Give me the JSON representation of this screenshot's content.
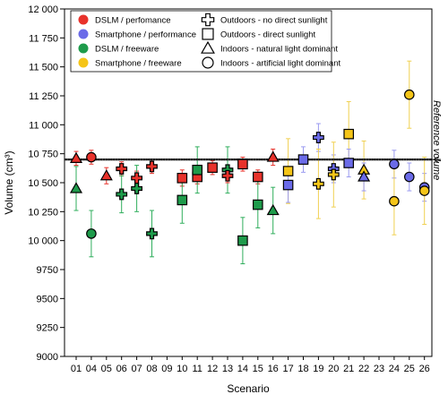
{
  "chart_data": {
    "type": "scatter",
    "xlabel": "Scenario",
    "ylabel": "Volume (cm³)",
    "categories": [
      "01",
      "04",
      "05",
      "06",
      "07",
      "08",
      "09",
      "10",
      "11",
      "12",
      "13",
      "14",
      "15",
      "16",
      "17",
      "18",
      "19",
      "20",
      "21",
      "22",
      "23",
      "24",
      "25",
      "26"
    ],
    "ylim": [
      9000,
      12000
    ],
    "yticks": [
      9000,
      9250,
      9500,
      9750,
      10000,
      10250,
      10500,
      10750,
      11000,
      11250,
      11500,
      11750,
      12000
    ],
    "ytick_labels": [
      "9000",
      "9250",
      "9500",
      "9750",
      "10 000",
      "10 250",
      "10 500",
      "10 750",
      "11 000",
      "11 250",
      "11 500",
      "11 750",
      "12 000"
    ],
    "reference": {
      "value": 10700,
      "label": "Reference volume"
    },
    "colors": {
      "dslm_performance": "#e8322b",
      "smartphone_performance": "#6b6be8",
      "dslm_freeware": "#1e9b4b",
      "smartphone_freeware": "#f5c518"
    },
    "error_colors": {
      "dslm_performance": "#e8322b",
      "smartphone_performance": "#9a9af0",
      "dslm_freeware": "#2fae5c",
      "smartphone_freeware": "#f0d050"
    },
    "legend_colors": [
      {
        "label": "DSLM / perfomance",
        "group": "dslm_performance"
      },
      {
        "label": "Smartphone / performance",
        "group": "smartphone_performance"
      },
      {
        "label": "DSLM / freeware",
        "group": "dslm_freeware"
      },
      {
        "label": "Smartphone / freeware",
        "group": "smartphone_freeware"
      }
    ],
    "legend_shapes": [
      {
        "label": "Outdoors - no direct sunlight",
        "shape": "cross"
      },
      {
        "label": "Outdoors - direct sunlight",
        "shape": "square"
      },
      {
        "label": "Indoors - natural light dominant",
        "shape": "triangle"
      },
      {
        "label": "Indoors - artificial light dominant",
        "shape": "circle"
      }
    ],
    "points": [
      {
        "x": "01",
        "y": 10710,
        "err": 60,
        "group": "dslm_performance",
        "shape": "triangle"
      },
      {
        "x": "01",
        "y": 10450,
        "err": 190,
        "group": "dslm_freeware",
        "shape": "triangle"
      },
      {
        "x": "04",
        "y": 10720,
        "err": 60,
        "group": "dslm_performance",
        "shape": "circle"
      },
      {
        "x": "04",
        "y": 10060,
        "err": 200,
        "group": "dslm_freeware",
        "shape": "circle"
      },
      {
        "x": "05",
        "y": 10560,
        "err": 70,
        "group": "dslm_performance",
        "shape": "triangle"
      },
      {
        "x": "06",
        "y": 10620,
        "err": 60,
        "group": "dslm_performance",
        "shape": "cross"
      },
      {
        "x": "06",
        "y": 10400,
        "err": 160,
        "group": "dslm_freeware",
        "shape": "cross"
      },
      {
        "x": "07",
        "y": 10540,
        "err": 60,
        "group": "dslm_performance",
        "shape": "cross"
      },
      {
        "x": "07",
        "y": 10450,
        "err": 200,
        "group": "dslm_freeware",
        "shape": "cross"
      },
      {
        "x": "08",
        "y": 10640,
        "err": 60,
        "group": "dslm_performance",
        "shape": "cross"
      },
      {
        "x": "08",
        "y": 10060,
        "err": 200,
        "group": "dslm_freeware",
        "shape": "cross"
      },
      {
        "x": "10",
        "y": 10540,
        "err": 70,
        "group": "dslm_performance",
        "shape": "square"
      },
      {
        "x": "10",
        "y": 10350,
        "err": 200,
        "group": "dslm_freeware",
        "shape": "square"
      },
      {
        "x": "11",
        "y": 10550,
        "err": 60,
        "group": "dslm_performance",
        "shape": "square"
      },
      {
        "x": "11",
        "y": 10610,
        "err": 200,
        "group": "dslm_freeware",
        "shape": "square"
      },
      {
        "x": "12",
        "y": 10630,
        "err": 60,
        "group": "dslm_performance",
        "shape": "square"
      },
      {
        "x": "13",
        "y": 10610,
        "err": 200,
        "group": "dslm_freeware",
        "shape": "cross"
      },
      {
        "x": "13",
        "y": 10560,
        "err": 60,
        "group": "dslm_performance",
        "shape": "cross"
      },
      {
        "x": "14",
        "y": 10660,
        "err": 60,
        "group": "dslm_performance",
        "shape": "square"
      },
      {
        "x": "14",
        "y": 10000,
        "err": 200,
        "group": "dslm_freeware",
        "shape": "square"
      },
      {
        "x": "15",
        "y": 10550,
        "err": 60,
        "group": "dslm_performance",
        "shape": "square"
      },
      {
        "x": "15",
        "y": 10310,
        "err": 200,
        "group": "dslm_freeware",
        "shape": "square"
      },
      {
        "x": "16",
        "y": 10720,
        "err": 70,
        "group": "dslm_performance",
        "shape": "triangle"
      },
      {
        "x": "16",
        "y": 10260,
        "err": 200,
        "group": "dslm_freeware",
        "shape": "triangle"
      },
      {
        "x": "17",
        "y": 10600,
        "err": 280,
        "group": "smartphone_freeware",
        "shape": "square"
      },
      {
        "x": "17",
        "y": 10480,
        "err": 150,
        "group": "smartphone_performance",
        "shape": "square"
      },
      {
        "x": "18",
        "y": 10700,
        "err": 110,
        "group": "smartphone_performance",
        "shape": "square"
      },
      {
        "x": "19",
        "y": 10890,
        "err": 120,
        "group": "smartphone_performance",
        "shape": "cross"
      },
      {
        "x": "19",
        "y": 10490,
        "err": 300,
        "group": "smartphone_freeware",
        "shape": "cross"
      },
      {
        "x": "20",
        "y": 10620,
        "err": 120,
        "group": "smartphone_performance",
        "shape": "cross"
      },
      {
        "x": "20",
        "y": 10570,
        "err": 280,
        "group": "smartphone_freeware",
        "shape": "cross"
      },
      {
        "x": "21",
        "y": 10920,
        "err": 280,
        "group": "smartphone_freeware",
        "shape": "square"
      },
      {
        "x": "21",
        "y": 10670,
        "err": 120,
        "group": "smartphone_performance",
        "shape": "square"
      },
      {
        "x": "22",
        "y": 10610,
        "err": 250,
        "group": "smartphone_freeware",
        "shape": "triangle"
      },
      {
        "x": "22",
        "y": 10550,
        "err": 120,
        "group": "smartphone_performance",
        "shape": "triangle"
      },
      {
        "x": "24",
        "y": 10660,
        "err": 120,
        "group": "smartphone_performance",
        "shape": "circle"
      },
      {
        "x": "24",
        "y": 10340,
        "err": 290,
        "group": "smartphone_freeware",
        "shape": "circle"
      },
      {
        "x": "25",
        "y": 11260,
        "err": 290,
        "group": "smartphone_freeware",
        "shape": "circle"
      },
      {
        "x": "25",
        "y": 10550,
        "err": 120,
        "group": "smartphone_performance",
        "shape": "circle"
      },
      {
        "x": "26",
        "y": 10460,
        "err": 120,
        "group": "smartphone_performance",
        "shape": "circle"
      },
      {
        "x": "26",
        "y": 10430,
        "err": 290,
        "group": "smartphone_freeware",
        "shape": "circle"
      }
    ]
  }
}
